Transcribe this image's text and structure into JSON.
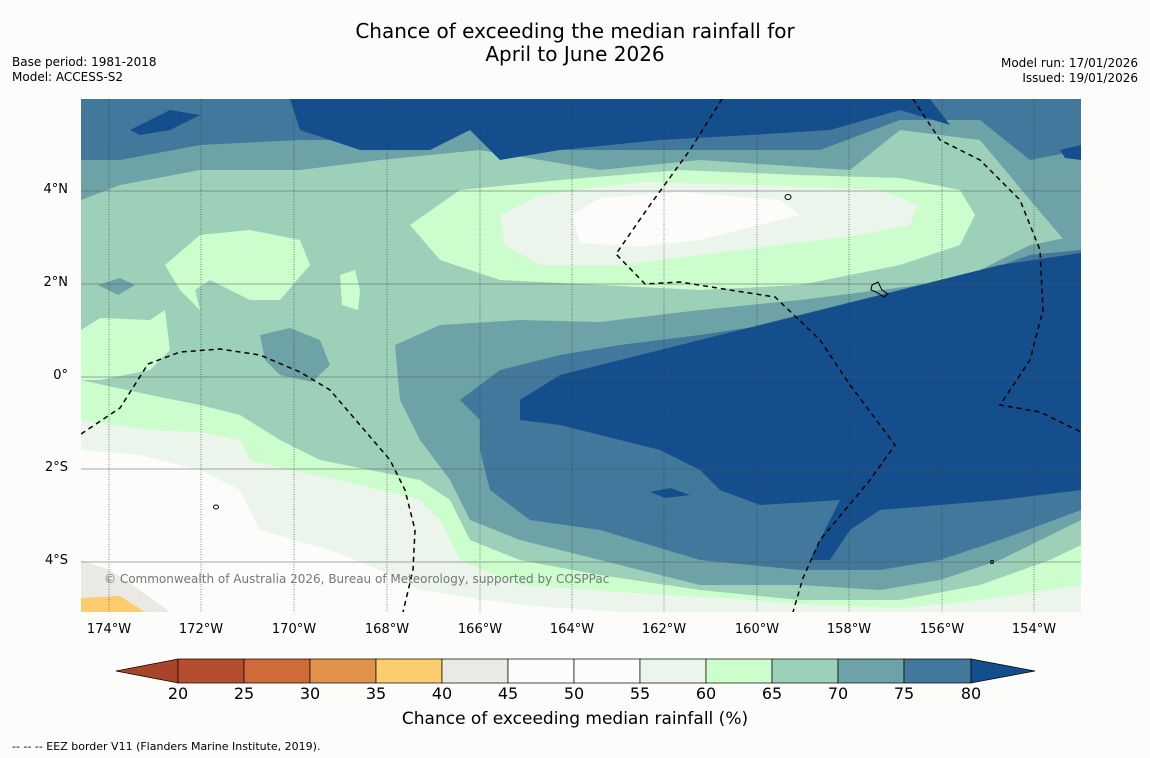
{
  "title": {
    "line1": "Chance of exceeding the median rainfall for",
    "line2": "April to June 2026"
  },
  "meta_left": {
    "base_period": "Base period: 1981-2018",
    "model": "Model: ACCESS-S2"
  },
  "meta_right": {
    "model_run": "Model run: 17/01/2026",
    "issued": "Issued: 19/01/2026"
  },
  "map": {
    "lat_labels": [
      "4°N",
      "2°N",
      "0°",
      "2°S",
      "4°S"
    ],
    "lon_labels": [
      "174°W",
      "172°W",
      "170°W",
      "168°W",
      "166°W",
      "164°W",
      "162°W",
      "160°W",
      "158°W",
      "156°W",
      "154°W"
    ],
    "copyright": "© Commonwealth of Australia 2026, Bureau of Meteorology, supported by COSPPac"
  },
  "colorbar": {
    "ticks": [
      "20",
      "25",
      "30",
      "35",
      "40",
      "45",
      "50",
      "55",
      "60",
      "65",
      "70",
      "75",
      "80"
    ],
    "colors": [
      "#a7442a",
      "#b54e2e",
      "#cf6a39",
      "#e0924b",
      "#fdcc6e",
      "#ebe9e4",
      "#fcfcfb",
      "#fcfcfb",
      "#ebf5eb",
      "#cbfdcd",
      "#9dd0b8",
      "#6da3a6",
      "#42789b",
      "#144e8c"
    ],
    "label": "Chance of exceeding median rainfall (%)"
  },
  "footnote": "--  --  -- EEZ border V11 (Flanders Marine Institute, 2019).",
  "icons": [
    "map-plot"
  ]
}
